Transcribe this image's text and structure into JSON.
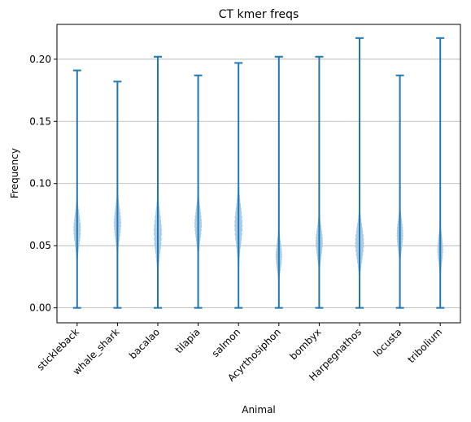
{
  "chart_data": {
    "type": "violin",
    "title": "CT kmer freqs",
    "xlabel": "Animal",
    "ylabel": "Frequency",
    "ylim": [
      -0.012,
      0.228
    ],
    "yticks": [
      "0.00",
      "0.05",
      "0.10",
      "0.15",
      "0.20"
    ],
    "ytick_values": [
      0.0,
      0.05,
      0.1,
      0.15,
      0.2
    ],
    "grid": "horizontal",
    "color": "#1f77b4",
    "violin_fill": "#9ec4e0",
    "categories": [
      "stickleback",
      "whale_shark",
      "bacalao",
      "tilapia",
      "salmon",
      "Acyrthosiphon",
      "bombyx",
      "Harpegnathos",
      "locusta",
      "tribolium"
    ],
    "series": [
      {
        "min": 0.0,
        "max": 0.191,
        "center": 0.063,
        "spread": 0.012,
        "lo": 0.035,
        "hi": 0.095,
        "width": 0.09
      },
      {
        "min": 0.0,
        "max": 0.182,
        "center": 0.068,
        "spread": 0.012,
        "lo": 0.043,
        "hi": 0.099,
        "width": 0.09
      },
      {
        "min": 0.0,
        "max": 0.202,
        "center": 0.06,
        "spread": 0.015,
        "lo": 0.023,
        "hi": 0.102,
        "width": 0.1
      },
      {
        "min": 0.0,
        "max": 0.187,
        "center": 0.067,
        "spread": 0.012,
        "lo": 0.038,
        "hi": 0.098,
        "width": 0.09
      },
      {
        "min": 0.0,
        "max": 0.197,
        "center": 0.066,
        "spread": 0.015,
        "lo": 0.028,
        "hi": 0.104,
        "width": 0.1
      },
      {
        "min": 0.0,
        "max": 0.202,
        "center": 0.042,
        "spread": 0.01,
        "lo": 0.02,
        "hi": 0.066,
        "width": 0.08
      },
      {
        "min": 0.0,
        "max": 0.202,
        "center": 0.053,
        "spread": 0.011,
        "lo": 0.028,
        "hi": 0.08,
        "width": 0.09
      },
      {
        "min": 0.0,
        "max": 0.217,
        "center": 0.052,
        "spread": 0.013,
        "lo": 0.018,
        "hi": 0.086,
        "width": 0.11
      },
      {
        "min": 0.0,
        "max": 0.187,
        "center": 0.059,
        "spread": 0.011,
        "lo": 0.035,
        "hi": 0.085,
        "width": 0.08
      },
      {
        "min": 0.0,
        "max": 0.217,
        "center": 0.047,
        "spread": 0.01,
        "lo": 0.022,
        "hi": 0.072,
        "width": 0.07
      }
    ]
  }
}
